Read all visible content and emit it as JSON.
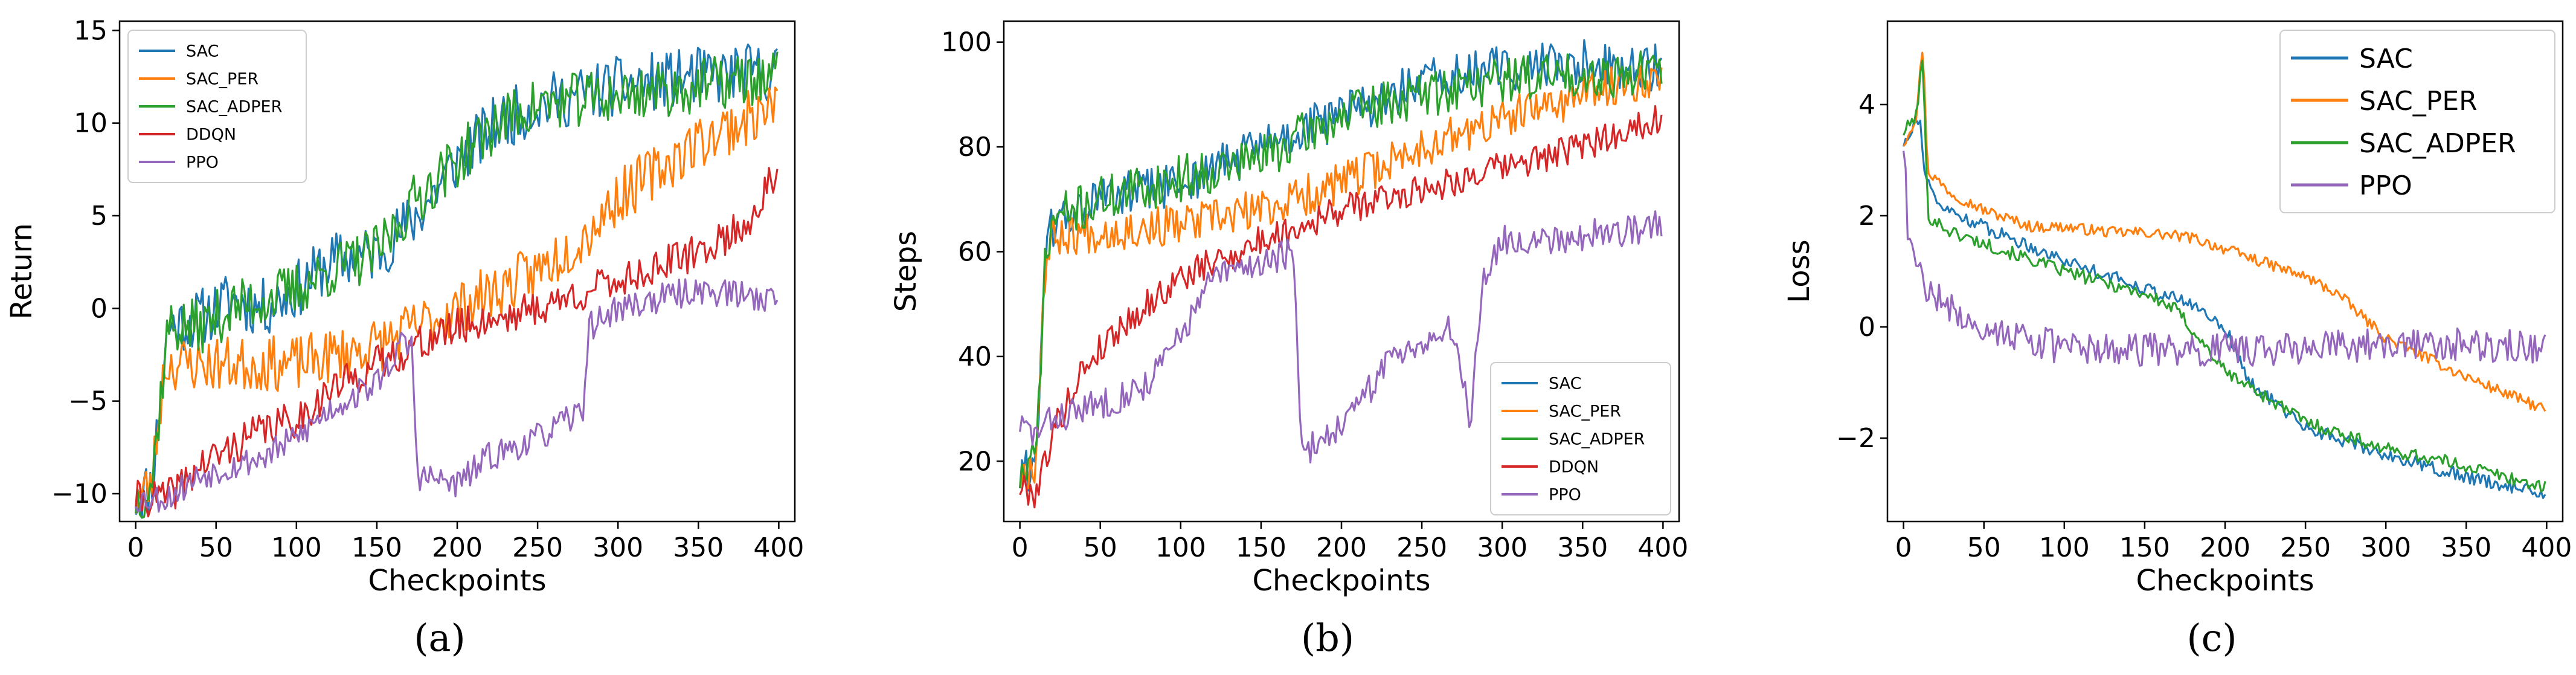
{
  "colors": {
    "SAC": "#1f77b4",
    "SAC_PER": "#ff7f0e",
    "SAC_ADPER": "#2ca02c",
    "DDQN": "#d62728",
    "PPO": "#9467bd"
  },
  "chart_data": [
    {
      "type": "line",
      "panel_label": "(a)",
      "xlabel": "Checkpoints",
      "ylabel": "Return",
      "xlim": [
        -10,
        410
      ],
      "ylim": [
        -11.5,
        15.5
      ],
      "xticks": [
        0,
        50,
        100,
        150,
        200,
        250,
        300,
        350,
        400
      ],
      "yticks": [
        -10,
        -5,
        0,
        5,
        10,
        15
      ],
      "legend": "upper-left",
      "series": [
        {
          "name": "SAC",
          "anchors": [
            [
              0,
              -10.3
            ],
            [
              10,
              -9.5
            ],
            [
              20,
              -1
            ],
            [
              40,
              -0.5
            ],
            [
              60,
              0.5
            ],
            [
              80,
              0
            ],
            [
              100,
              1
            ],
            [
              120,
              2.5
            ],
            [
              150,
              3
            ],
            [
              175,
              5
            ],
            [
              200,
              8
            ],
            [
              225,
              10
            ],
            [
              250,
              11
            ],
            [
              300,
              12
            ],
            [
              350,
              12.5
            ],
            [
              400,
              12.8
            ]
          ],
          "noise": 1.6,
          "seed": 11
        },
        {
          "name": "SAC_PER",
          "anchors": [
            [
              0,
              -10.3
            ],
            [
              10,
              -9.5
            ],
            [
              18,
              -3
            ],
            [
              40,
              -3
            ],
            [
              60,
              -3
            ],
            [
              100,
              -3
            ],
            [
              150,
              -2
            ],
            [
              200,
              0
            ],
            [
              250,
              2
            ],
            [
              280,
              4
            ],
            [
              300,
              6
            ],
            [
              350,
              9
            ],
            [
              400,
              11
            ]
          ],
          "noise": 1.5,
          "seed": 23
        },
        {
          "name": "SAC_ADPER",
          "anchors": [
            [
              0,
              -10.3
            ],
            [
              10,
              -9.5
            ],
            [
              20,
              -1
            ],
            [
              40,
              -1
            ],
            [
              60,
              0
            ],
            [
              100,
              1
            ],
            [
              120,
              2
            ],
            [
              150,
              3
            ],
            [
              175,
              6
            ],
            [
              200,
              8
            ],
            [
              225,
              10
            ],
            [
              250,
              11
            ],
            [
              300,
              11.5
            ],
            [
              350,
              12
            ],
            [
              400,
              12.5
            ]
          ],
          "noise": 1.5,
          "seed": 37
        },
        {
          "name": "DDQN",
          "anchors": [
            [
              0,
              -10.3
            ],
            [
              20,
              -10.2
            ],
            [
              40,
              -8.5
            ],
            [
              60,
              -7.5
            ],
            [
              80,
              -6.5
            ],
            [
              100,
              -6
            ],
            [
              120,
              -4.5
            ],
            [
              150,
              -3
            ],
            [
              175,
              -2
            ],
            [
              200,
              -1
            ],
            [
              250,
              0
            ],
            [
              300,
              1.5
            ],
            [
              350,
              3
            ],
            [
              380,
              4.5
            ],
            [
              400,
              7.5
            ]
          ],
          "noise": 1.0,
          "seed": 41
        },
        {
          "name": "PPO",
          "anchors": [
            [
              0,
              -10.3
            ],
            [
              20,
              -10.2
            ],
            [
              40,
              -9
            ],
            [
              60,
              -8.5
            ],
            [
              80,
              -8
            ],
            [
              100,
              -7
            ],
            [
              120,
              -5.5
            ],
            [
              150,
              -4
            ],
            [
              165,
              -2
            ],
            [
              172,
              -2
            ],
            [
              175,
              -9
            ],
            [
              200,
              -9.5
            ],
            [
              220,
              -8
            ],
            [
              250,
              -7
            ],
            [
              270,
              -6
            ],
            [
              278,
              -5.5
            ],
            [
              282,
              -1
            ],
            [
              300,
              0
            ],
            [
              350,
              1
            ],
            [
              400,
              0.5
            ]
          ],
          "noise": 0.8,
          "seed": 53
        }
      ]
    },
    {
      "type": "line",
      "panel_label": "(b)",
      "xlabel": "Checkpoints",
      "ylabel": "Steps",
      "xlim": [
        -10,
        410
      ],
      "ylim": [
        8.5,
        104
      ],
      "xticks": [
        0,
        50,
        100,
        150,
        200,
        250,
        300,
        350,
        400
      ],
      "yticks": [
        20,
        40,
        60,
        80,
        100
      ],
      "legend": "lower-right",
      "series": [
        {
          "name": "SAC",
          "anchors": [
            [
              0,
              17
            ],
            [
              10,
              20
            ],
            [
              15,
              55
            ],
            [
              20,
              65
            ],
            [
              50,
              70
            ],
            [
              100,
              73
            ],
            [
              150,
              80
            ],
            [
              200,
              86
            ],
            [
              250,
              92
            ],
            [
              300,
              95
            ],
            [
              350,
              96
            ],
            [
              400,
              95
            ]
          ],
          "noise": 4.5,
          "seed": 61
        },
        {
          "name": "SAC_PER",
          "anchors": [
            [
              0,
              17
            ],
            [
              10,
              20
            ],
            [
              15,
              55
            ],
            [
              20,
              63
            ],
            [
              50,
              64
            ],
            [
              100,
              65
            ],
            [
              150,
              68
            ],
            [
              200,
              73
            ],
            [
              250,
              80
            ],
            [
              300,
              85
            ],
            [
              350,
              90
            ],
            [
              400,
              94
            ]
          ],
          "noise": 4.0,
          "seed": 67
        },
        {
          "name": "SAC_ADPER",
          "anchors": [
            [
              0,
              17
            ],
            [
              10,
              20
            ],
            [
              15,
              55
            ],
            [
              20,
              66
            ],
            [
              50,
              70
            ],
            [
              100,
              74
            ],
            [
              150,
              78
            ],
            [
              200,
              86
            ],
            [
              250,
              90
            ],
            [
              300,
              93
            ],
            [
              350,
              94
            ],
            [
              400,
              94
            ]
          ],
          "noise": 4.5,
          "seed": 71
        },
        {
          "name": "DDQN",
          "anchors": [
            [
              0,
              15
            ],
            [
              10,
              14
            ],
            [
              20,
              25
            ],
            [
              40,
              38
            ],
            [
              60,
              45
            ],
            [
              80,
              50
            ],
            [
              100,
              55
            ],
            [
              150,
              62
            ],
            [
              200,
              68
            ],
            [
              250,
              72
            ],
            [
              300,
              76
            ],
            [
              350,
              80
            ],
            [
              400,
              86
            ]
          ],
          "noise": 3.0,
          "seed": 79
        },
        {
          "name": "PPO",
          "anchors": [
            [
              0,
              27
            ],
            [
              10,
              25
            ],
            [
              20,
              28
            ],
            [
              40,
              30
            ],
            [
              60,
              32
            ],
            [
              80,
              35
            ],
            [
              100,
              44
            ],
            [
              120,
              55
            ],
            [
              150,
              58
            ],
            [
              170,
              60
            ],
            [
              175,
              21
            ],
            [
              190,
              25
            ],
            [
              200,
              27
            ],
            [
              210,
              30
            ],
            [
              230,
              40
            ],
            [
              250,
              43
            ],
            [
              270,
              45
            ],
            [
              280,
              28
            ],
            [
              288,
              55
            ],
            [
              300,
              62
            ],
            [
              350,
              63
            ],
            [
              400,
              65
            ]
          ],
          "noise": 3.0,
          "seed": 83
        }
      ]
    },
    {
      "type": "line",
      "panel_label": "(c)",
      "xlabel": "Checkpoints",
      "ylabel": "Loss",
      "xlim": [
        -10,
        410
      ],
      "ylim": [
        -3.5,
        5.5
      ],
      "xticks": [
        0,
        50,
        100,
        150,
        200,
        250,
        300,
        350,
        400
      ],
      "yticks": [
        -2,
        0,
        2,
        4
      ],
      "legend": "upper-right",
      "series": [
        {
          "name": "SAC",
          "anchors": [
            [
              0,
              3.3
            ],
            [
              5,
              3.6
            ],
            [
              10,
              3.8
            ],
            [
              12,
              3.0
            ],
            [
              20,
              2.2
            ],
            [
              50,
              1.8
            ],
            [
              100,
              1.2
            ],
            [
              150,
              0.7
            ],
            [
              180,
              0.4
            ],
            [
              200,
              0.0
            ],
            [
              215,
              -1.0
            ],
            [
              250,
              -1.8
            ],
            [
              300,
              -2.3
            ],
            [
              350,
              -2.7
            ],
            [
              400,
              -3.0
            ]
          ],
          "noise": 0.12,
          "seed": 91
        },
        {
          "name": "SAC_PER",
          "anchors": [
            [
              0,
              3.3
            ],
            [
              8,
              3.8
            ],
            [
              12,
              5.1
            ],
            [
              15,
              2.8
            ],
            [
              30,
              2.4
            ],
            [
              50,
              2.1
            ],
            [
              80,
              1.8
            ],
            [
              100,
              1.8
            ],
            [
              130,
              1.7
            ],
            [
              150,
              1.7
            ],
            [
              180,
              1.6
            ],
            [
              200,
              1.4
            ],
            [
              250,
              0.9
            ],
            [
              270,
              0.6
            ],
            [
              300,
              -0.2
            ],
            [
              350,
              -0.9
            ],
            [
              400,
              -1.5
            ]
          ],
          "noise": 0.1,
          "seed": 97
        },
        {
          "name": "SAC_ADPER",
          "anchors": [
            [
              0,
              3.5
            ],
            [
              8,
              3.8
            ],
            [
              12,
              4.9
            ],
            [
              15,
              2.0
            ],
            [
              30,
              1.7
            ],
            [
              50,
              1.5
            ],
            [
              100,
              1.0
            ],
            [
              150,
              0.6
            ],
            [
              170,
              0.3
            ],
            [
              200,
              -0.8
            ],
            [
              250,
              -1.7
            ],
            [
              300,
              -2.2
            ],
            [
              350,
              -2.5
            ],
            [
              400,
              -2.9
            ]
          ],
          "noise": 0.12,
          "seed": 101
        },
        {
          "name": "PPO",
          "anchors": [
            [
              0,
              3.3
            ],
            [
              3,
              1.6
            ],
            [
              10,
              0.9
            ],
            [
              25,
              0.4
            ],
            [
              50,
              0.0
            ],
            [
              100,
              -0.4
            ],
            [
              150,
              -0.4
            ],
            [
              200,
              -0.4
            ],
            [
              250,
              -0.4
            ],
            [
              300,
              -0.3
            ],
            [
              350,
              -0.3
            ],
            [
              400,
              -0.4
            ]
          ],
          "noise": 0.3,
          "seed": 107
        }
      ]
    }
  ]
}
